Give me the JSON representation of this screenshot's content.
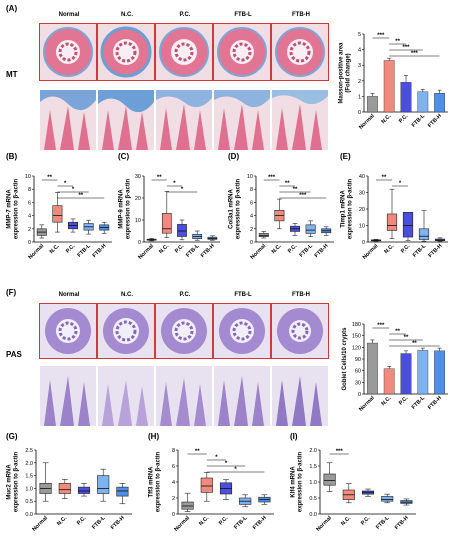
{
  "colors": {
    "normal": "#9a9a9a",
    "nc": "#f08a7e",
    "pc": "#4a4fe0",
    "ftbl": "#7fb2f0",
    "ftbh": "#4f8fe8",
    "pas_nc": "#f0524a",
    "mt_tissue": "#e0708f",
    "mt_collagen": "#7aa5d9",
    "pas_tissue": "#9b82c9"
  },
  "panel_A": {
    "label": "(A)",
    "groups": [
      "Normal",
      "N.C.",
      "P.C.",
      "FTB-L",
      "FTB-H"
    ],
    "row_label": "MT",
    "chart_data": {
      "type": "bar",
      "categories": [
        "Normal",
        "N.C.",
        "P.C.",
        "FTB-L",
        "FTB-H"
      ],
      "values": [
        1.0,
        3.3,
        1.9,
        1.3,
        1.2
      ],
      "errors": [
        0.2,
        0.15,
        0.45,
        0.15,
        0.2
      ],
      "ylabel": "Masson-positive area\n(Fold change)",
      "ylim": [
        0,
        5
      ],
      "yticks": [
        "0",
        "1",
        "2",
        "3",
        "4",
        "5"
      ],
      "significance": [
        "***",
        "**",
        "***",
        "***"
      ]
    }
  },
  "panel_B": {
    "label": "(B)",
    "chart_data": {
      "type": "box",
      "categories": [
        "Normal",
        "N.C.",
        "P.C.",
        "FTB-L",
        "FTB-H"
      ],
      "ylabel": "MMP-7 mRNA\nexpression to β-actin",
      "ylim": [
        0,
        10
      ],
      "yticks": [
        "0",
        "2",
        "4",
        "6",
        "8",
        "10"
      ],
      "boxes": [
        {
          "min": 0.6,
          "q1": 1.0,
          "median": 1.5,
          "q3": 2.0,
          "max": 2.6
        },
        {
          "min": 1.5,
          "q1": 3.0,
          "median": 4.0,
          "q3": 5.5,
          "max": 7.5
        },
        {
          "min": 1.5,
          "q1": 2.0,
          "median": 2.5,
          "q3": 3.0,
          "max": 3.5
        },
        {
          "min": 1.2,
          "q1": 1.8,
          "median": 2.3,
          "q3": 2.8,
          "max": 3.3
        },
        {
          "min": 1.3,
          "q1": 1.8,
          "median": 2.2,
          "q3": 2.6,
          "max": 3.0
        }
      ],
      "significance": [
        "**",
        "*",
        "*",
        "**"
      ]
    }
  },
  "panel_C": {
    "label": "(C)",
    "chart_data": {
      "type": "box",
      "categories": [
        "Normal",
        "N.C.",
        "P.C.",
        "FTB-L",
        "FTB-H"
      ],
      "ylabel": "MMP-9 mRNA\nexpression to β-actin",
      "ylim": [
        0,
        30
      ],
      "yticks": [
        "0",
        "10",
        "20",
        "30"
      ],
      "boxes": [
        {
          "min": 0.5,
          "q1": 0.8,
          "median": 1.0,
          "q3": 1.3,
          "max": 1.6
        },
        {
          "min": 2.0,
          "q1": 4.0,
          "median": 6.0,
          "q3": 13.0,
          "max": 23.0
        },
        {
          "min": 1.0,
          "q1": 2.5,
          "median": 5.0,
          "q3": 8.0,
          "max": 10.0
        },
        {
          "min": 0.8,
          "q1": 1.5,
          "median": 2.5,
          "q3": 3.5,
          "max": 5.0
        },
        {
          "min": 0.8,
          "q1": 1.2,
          "median": 1.6,
          "q3": 2.2,
          "max": 2.8
        }
      ],
      "significance": [
        "**",
        "*",
        "*"
      ]
    }
  },
  "panel_D": {
    "label": "(D)",
    "chart_data": {
      "type": "box",
      "categories": [
        "Normal",
        "N.C.",
        "P.C.",
        "FTB-L",
        "FTB-H"
      ],
      "ylabel": "Col3a1 mRNA\nexpression to β-actin",
      "ylim": [
        0,
        10
      ],
      "yticks": [
        "0",
        "2",
        "4",
        "6",
        "8",
        "10"
      ],
      "boxes": [
        {
          "min": 0.6,
          "q1": 0.8,
          "median": 1.0,
          "q3": 1.3,
          "max": 1.6
        },
        {
          "min": 2.0,
          "q1": 3.2,
          "median": 4.0,
          "q3": 4.8,
          "max": 6.5
        },
        {
          "min": 1.0,
          "q1": 1.6,
          "median": 2.0,
          "q3": 2.4,
          "max": 2.8
        },
        {
          "min": 0.8,
          "q1": 1.3,
          "median": 1.8,
          "q3": 2.6,
          "max": 3.2
        },
        {
          "min": 1.0,
          "q1": 1.4,
          "median": 1.7,
          "q3": 2.0,
          "max": 2.3
        }
      ],
      "significance": [
        "***",
        "**",
        "**",
        "***"
      ]
    }
  },
  "panel_E": {
    "label": "(E)",
    "chart_data": {
      "type": "box",
      "categories": [
        "Normal",
        "N.C.",
        "P.C.",
        "FTB-L",
        "FTB-H"
      ],
      "ylabel": "Timp1 mRNA\nexpression to β-actin",
      "ylim": [
        0,
        40
      ],
      "yticks": [
        "0",
        "10",
        "20",
        "30",
        "40"
      ],
      "boxes": [
        {
          "min": 0.5,
          "q1": 0.8,
          "median": 1.0,
          "q3": 1.3,
          "max": 1.6
        },
        {
          "min": 2.0,
          "q1": 7.0,
          "median": 10.0,
          "q3": 17.0,
          "max": 32.0
        },
        {
          "min": 1.0,
          "q1": 3.0,
          "median": 10.0,
          "q3": 18.0,
          "max": 18.0
        },
        {
          "min": 0.5,
          "q1": 1.5,
          "median": 3.5,
          "q3": 8.0,
          "max": 19.0
        },
        {
          "min": 0.5,
          "q1": 0.8,
          "median": 1.2,
          "q3": 1.8,
          "max": 2.5
        }
      ],
      "significance": [
        "**",
        "*"
      ]
    }
  },
  "panel_F": {
    "label": "(F)",
    "groups": [
      "Normal",
      "N.C.",
      "P.C.",
      "FTB-L",
      "FTB-H"
    ],
    "row_label": "PAS",
    "chart_data": {
      "type": "bar",
      "categories": [
        "Normal",
        "N.C.",
        "P.C.",
        "FTB-L",
        "FTB-H"
      ],
      "values": [
        131,
        65,
        104,
        112,
        111
      ],
      "errors": [
        8,
        6,
        7,
        6,
        7
      ],
      "ylabel": "Goblet Cells/10 crypts",
      "ylim": [
        0,
        180
      ],
      "yticks": [
        "0",
        "30",
        "60",
        "90",
        "120",
        "150",
        "180"
      ],
      "significance": [
        "***",
        "**",
        "**",
        "**"
      ]
    }
  },
  "panel_G": {
    "label": "(G)",
    "chart_data": {
      "type": "box",
      "categories": [
        "Normal",
        "N.C.",
        "P.C.",
        "FTB-L",
        "FTB-H"
      ],
      "ylabel": "Muc2 mRNA\nexpression to β-actin",
      "ylim": [
        0,
        2.5
      ],
      "yticks": [
        "0.0",
        "0.5",
        "1.0",
        "1.5",
        "2.0",
        "2.5"
      ],
      "boxes": [
        {
          "min": 0.5,
          "q1": 0.8,
          "median": 1.0,
          "q3": 1.2,
          "max": 2.0
        },
        {
          "min": 0.6,
          "q1": 0.8,
          "median": 0.95,
          "q3": 1.2,
          "max": 1.35
        },
        {
          "min": 0.7,
          "q1": 0.8,
          "median": 0.9,
          "q3": 1.05,
          "max": 1.2
        },
        {
          "min": 0.5,
          "q1": 0.8,
          "median": 1.0,
          "q3": 1.5,
          "max": 1.75
        },
        {
          "min": 0.4,
          "q1": 0.7,
          "median": 0.9,
          "q3": 1.05,
          "max": 1.2
        }
      ],
      "significance": []
    }
  },
  "panel_H": {
    "label": "(H)",
    "chart_data": {
      "type": "box",
      "categories": [
        "Normal",
        "N.C.",
        "P.C.",
        "FTB-L",
        "FTB-H"
      ],
      "ylabel": "Tff3 mRNA\nexpression to β-actin",
      "ylim": [
        0,
        8
      ],
      "yticks": [
        "0",
        "2",
        "4",
        "6",
        "8"
      ],
      "boxes": [
        {
          "min": 0.3,
          "q1": 0.6,
          "median": 1.0,
          "q3": 1.5,
          "max": 2.6
        },
        {
          "min": 1.6,
          "q1": 2.7,
          "median": 3.5,
          "q3": 4.5,
          "max": 5.2
        },
        {
          "min": 1.8,
          "q1": 2.5,
          "median": 3.2,
          "q3": 3.9,
          "max": 4.3
        },
        {
          "min": 0.9,
          "q1": 1.2,
          "median": 1.6,
          "q3": 2.0,
          "max": 2.4
        },
        {
          "min": 1.2,
          "q1": 1.5,
          "median": 1.8,
          "q3": 2.1,
          "max": 2.4
        }
      ],
      "significance": [
        "**",
        "*",
        "*",
        "*"
      ]
    }
  },
  "panel_I": {
    "label": "(I)",
    "chart_data": {
      "type": "box",
      "categories": [
        "Normal",
        "N.C.",
        "P.C.",
        "FTB-L",
        "FTB-H"
      ],
      "ylabel": "Klf4 mRNA\nexpression to β-actin",
      "ylim": [
        0,
        2.0
      ],
      "yticks": [
        "0.0",
        "0.5",
        "1.0",
        "1.5",
        "2.0"
      ],
      "boxes": [
        {
          "min": 0.7,
          "q1": 0.9,
          "median": 1.05,
          "q3": 1.25,
          "max": 1.6
        },
        {
          "min": 0.35,
          "q1": 0.45,
          "median": 0.6,
          "q3": 0.75,
          "max": 0.95
        },
        {
          "min": 0.55,
          "q1": 0.62,
          "median": 0.68,
          "q3": 0.72,
          "max": 0.78
        },
        {
          "min": 0.35,
          "q1": 0.4,
          "median": 0.45,
          "q3": 0.55,
          "max": 0.62
        },
        {
          "min": 0.28,
          "q1": 0.33,
          "median": 0.37,
          "q3": 0.42,
          "max": 0.47
        }
      ],
      "significance": [
        "***"
      ]
    }
  }
}
